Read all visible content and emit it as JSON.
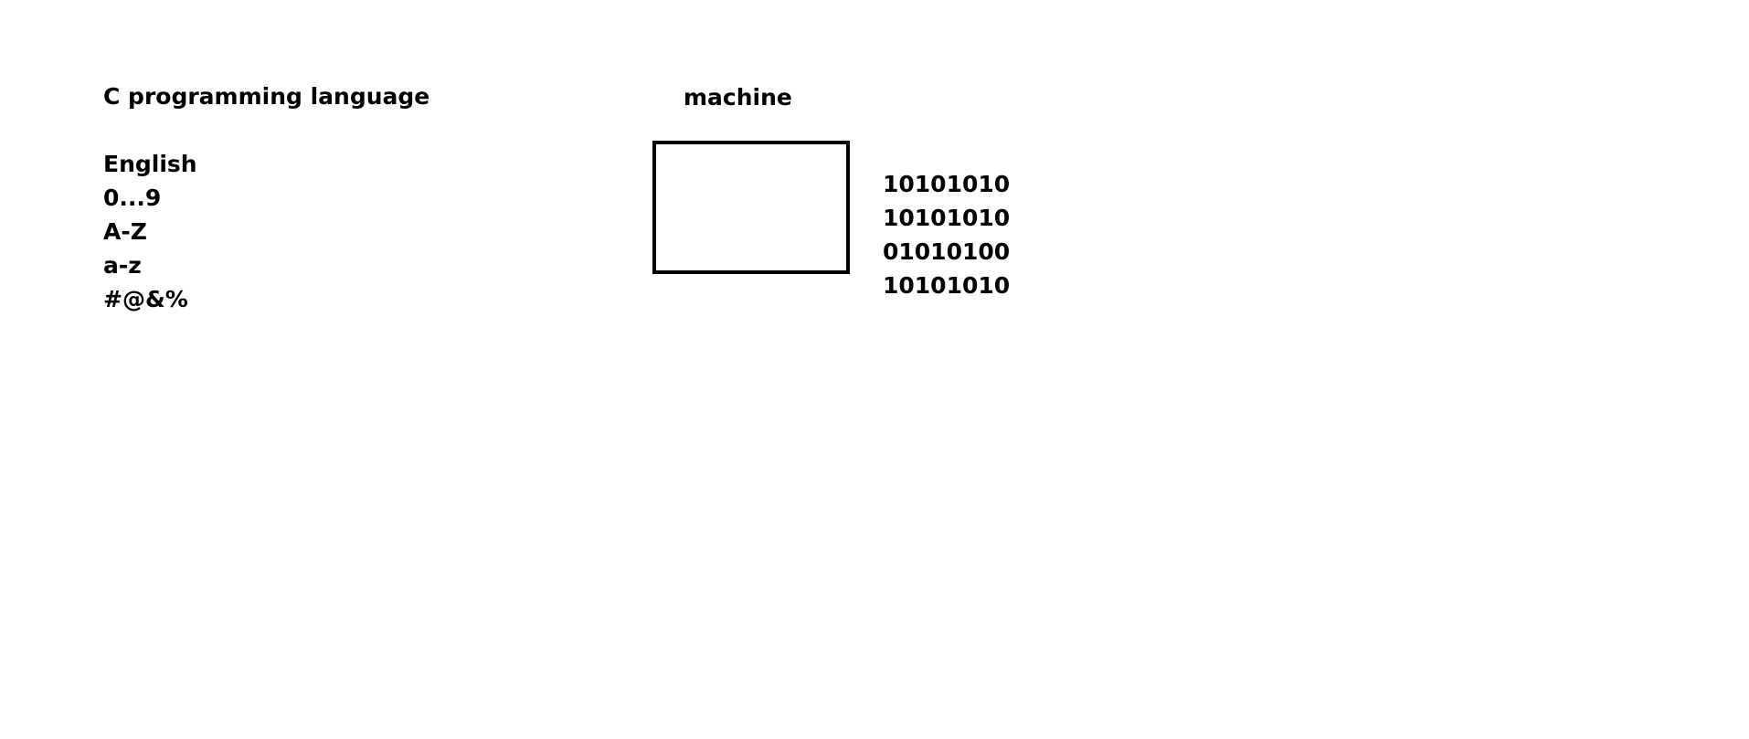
{
  "left": {
    "title": "C programming language",
    "items": [
      "English",
      "0...9",
      "A-Z",
      "a-z",
      "#@&%"
    ]
  },
  "right": {
    "title": "machine",
    "binary": [
      "10101010",
      "10101010",
      "01010100",
      "10101010"
    ]
  },
  "colors": {
    "text": "#000000",
    "background": "#ffffff",
    "box_border": "#000000"
  }
}
